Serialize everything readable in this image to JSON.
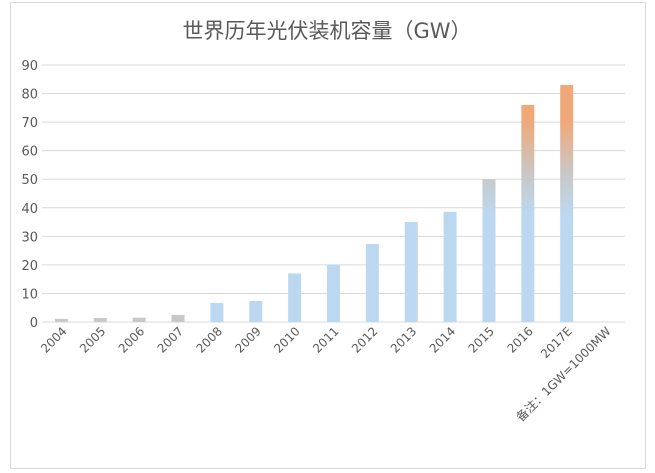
{
  "chart_data": {
    "type": "bar",
    "title": "世界历年光伏装机容量（GW）",
    "categories": [
      "2004",
      "2005",
      "2006",
      "2007",
      "2008",
      "2009",
      "2010",
      "2011",
      "2012",
      "2013",
      "2014",
      "2015",
      "2016",
      "2017E"
    ],
    "values": [
      1.1,
      1.4,
      1.5,
      2.5,
      6.7,
      7.4,
      17,
      20.1,
      27.3,
      35,
      38.6,
      50,
      76,
      83
    ],
    "extra_category_label": "备注：1GW=1000MW",
    "ylim": [
      0,
      90
    ],
    "yticks": [
      0,
      10,
      20,
      30,
      40,
      50,
      60,
      70,
      80,
      90
    ],
    "grid": true,
    "legend": "none",
    "colors": {
      "top": "#f0a878",
      "middle": "#c8c8c8",
      "bottom": "#bcd8f0",
      "grid": "#d9d9d9",
      "text": "#595959"
    }
  }
}
